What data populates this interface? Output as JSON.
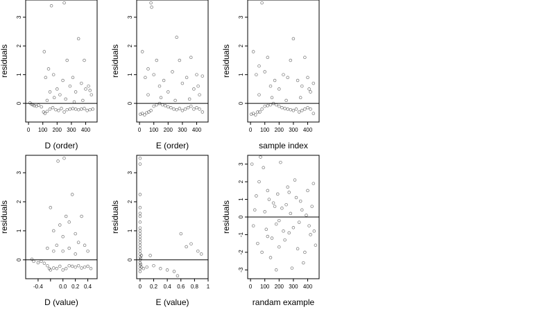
{
  "chart_data": [
    {
      "type": "scatter",
      "xlabel": "D (order)",
      "ylabel": "residuals",
      "xlim": [
        -20,
        480
      ],
      "ylim": [
        -0.65,
        3.6
      ],
      "x_ticks": [
        0,
        100,
        200,
        300,
        400
      ],
      "y_ticks": [
        0,
        1,
        2,
        3
      ],
      "hline": 0,
      "points": [
        [
          10,
          0.02
        ],
        [
          20,
          -0.03
        ],
        [
          30,
          -0.05
        ],
        [
          40,
          -0.08
        ],
        [
          55,
          -0.1
        ],
        [
          70,
          -0.06
        ],
        [
          90,
          -0.12
        ],
        [
          105,
          -0.3
        ],
        [
          115,
          -0.35
        ],
        [
          130,
          -0.28
        ],
        [
          150,
          -0.2
        ],
        [
          170,
          -0.15
        ],
        [
          190,
          -0.22
        ],
        [
          210,
          -0.25
        ],
        [
          230,
          -0.18
        ],
        [
          250,
          -0.3
        ],
        [
          270,
          -0.22
        ],
        [
          290,
          -0.2
        ],
        [
          310,
          -0.18
        ],
        [
          330,
          -0.2
        ],
        [
          350,
          -0.22
        ],
        [
          370,
          -0.2
        ],
        [
          390,
          -0.18
        ],
        [
          410,
          -0.25
        ],
        [
          430,
          -0.22
        ],
        [
          450,
          -0.2
        ],
        [
          110,
          1.8
        ],
        [
          120,
          0.9
        ],
        [
          140,
          1.2
        ],
        [
          150,
          0.4
        ],
        [
          160,
          3.4
        ],
        [
          175,
          1.0
        ],
        [
          200,
          0.5
        ],
        [
          220,
          0.3
        ],
        [
          240,
          0.8
        ],
        [
          250,
          3.5
        ],
        [
          270,
          1.5
        ],
        [
          290,
          0.6
        ],
        [
          310,
          0.9
        ],
        [
          330,
          0.4
        ],
        [
          350,
          2.25
        ],
        [
          370,
          0.7
        ],
        [
          390,
          1.5
        ],
        [
          400,
          0.5
        ],
        [
          420,
          0.6
        ],
        [
          440,
          0.3
        ],
        [
          130,
          0.1
        ],
        [
          180,
          0.2
        ],
        [
          260,
          0.15
        ],
        [
          320,
          0.05
        ],
        [
          380,
          0.1
        ],
        [
          430,
          0.45
        ]
      ]
    },
    {
      "type": "scatter",
      "xlabel": "E (order)",
      "ylabel": "residuals",
      "xlim": [
        -20,
        480
      ],
      "ylim": [
        -0.65,
        3.6
      ],
      "x_ticks": [
        0,
        100,
        200,
        300,
        400
      ],
      "y_ticks": [
        0,
        1,
        2,
        3
      ],
      "hline": 0,
      "points": [
        [
          5,
          -0.38
        ],
        [
          20,
          -0.35
        ],
        [
          35,
          -0.4
        ],
        [
          50,
          -0.33
        ],
        [
          65,
          -0.3
        ],
        [
          80,
          -0.25
        ],
        [
          100,
          -0.1
        ],
        [
          120,
          -0.05
        ],
        [
          140,
          0.0
        ],
        [
          160,
          -0.05
        ],
        [
          180,
          -0.08
        ],
        [
          200,
          -0.12
        ],
        [
          220,
          -0.15
        ],
        [
          240,
          -0.2
        ],
        [
          260,
          -0.22
        ],
        [
          280,
          -0.18
        ],
        [
          300,
          -0.25
        ],
        [
          320,
          -0.2
        ],
        [
          340,
          -0.15
        ],
        [
          360,
          -0.1
        ],
        [
          380,
          -0.2
        ],
        [
          400,
          -0.15
        ],
        [
          420,
          -0.2
        ],
        [
          440,
          -0.3
        ],
        [
          20,
          1.8
        ],
        [
          40,
          0.9
        ],
        [
          60,
          1.2
        ],
        [
          80,
          3.5
        ],
        [
          85,
          3.35
        ],
        [
          100,
          1.0
        ],
        [
          120,
          1.5
        ],
        [
          140,
          0.6
        ],
        [
          170,
          0.8
        ],
        [
          200,
          0.4
        ],
        [
          230,
          1.1
        ],
        [
          260,
          2.3
        ],
        [
          280,
          1.5
        ],
        [
          300,
          0.7
        ],
        [
          330,
          0.9
        ],
        [
          360,
          1.6
        ],
        [
          380,
          0.5
        ],
        [
          400,
          1.0
        ],
        [
          420,
          0.3
        ],
        [
          440,
          0.95
        ],
        [
          60,
          0.3
        ],
        [
          150,
          0.2
        ],
        [
          250,
          0.1
        ],
        [
          350,
          0.15
        ],
        [
          410,
          0.6
        ]
      ]
    },
    {
      "type": "scatter",
      "xlabel": "sample index",
      "ylabel": "residuals",
      "xlim": [
        -20,
        480
      ],
      "ylim": [
        -0.65,
        3.6
      ],
      "x_ticks": [
        0,
        100,
        200,
        300,
        400
      ],
      "y_ticks": [
        0,
        1,
        2,
        3
      ],
      "hline": 0,
      "points": [
        [
          5,
          -0.38
        ],
        [
          20,
          -0.35
        ],
        [
          35,
          -0.4
        ],
        [
          50,
          -0.3
        ],
        [
          65,
          -0.3
        ],
        [
          80,
          -0.2
        ],
        [
          100,
          -0.1
        ],
        [
          120,
          -0.08
        ],
        [
          140,
          -0.05
        ],
        [
          160,
          0.0
        ],
        [
          180,
          -0.05
        ],
        [
          200,
          -0.1
        ],
        [
          220,
          -0.15
        ],
        [
          240,
          -0.18
        ],
        [
          260,
          -0.2
        ],
        [
          280,
          -0.22
        ],
        [
          300,
          -0.25
        ],
        [
          320,
          -0.2
        ],
        [
          340,
          -0.3
        ],
        [
          360,
          -0.25
        ],
        [
          380,
          -0.2
        ],
        [
          400,
          -0.15
        ],
        [
          420,
          -0.2
        ],
        [
          440,
          -0.35
        ],
        [
          20,
          1.8
        ],
        [
          40,
          1.0
        ],
        [
          60,
          1.3
        ],
        [
          80,
          3.5
        ],
        [
          100,
          1.1
        ],
        [
          120,
          1.6
        ],
        [
          140,
          0.6
        ],
        [
          170,
          0.8
        ],
        [
          200,
          0.5
        ],
        [
          230,
          1.0
        ],
        [
          260,
          0.9
        ],
        [
          280,
          1.5
        ],
        [
          300,
          2.25
        ],
        [
          330,
          0.8
        ],
        [
          360,
          0.6
        ],
        [
          380,
          1.6
        ],
        [
          400,
          0.9
        ],
        [
          420,
          0.4
        ],
        [
          440,
          0.7
        ],
        [
          60,
          0.3
        ],
        [
          150,
          0.2
        ],
        [
          250,
          0.1
        ],
        [
          350,
          0.2
        ],
        [
          410,
          0.5
        ]
      ]
    },
    {
      "type": "scatter",
      "xlabel": "D (value)",
      "ylabel": "residuals",
      "xlim": [
        -0.6,
        0.55
      ],
      "ylim": [
        -0.65,
        3.6
      ],
      "x_ticks": [
        -0.4,
        -0.2,
        0.0,
        0.2,
        0.4
      ],
      "x_tick_labels": [
        "-0.4",
        "",
        "0.0",
        "0.2",
        "0.4"
      ],
      "y_ticks": [
        0,
        1,
        2,
        3
      ],
      "hline": 0,
      "points": [
        [
          -0.5,
          0.02
        ],
        [
          -0.47,
          -0.05
        ],
        [
          -0.4,
          -0.1
        ],
        [
          -0.35,
          -0.05
        ],
        [
          -0.3,
          -0.12
        ],
        [
          -0.25,
          -0.2
        ],
        [
          -0.22,
          -0.3
        ],
        [
          -0.2,
          -0.35
        ],
        [
          -0.15,
          -0.28
        ],
        [
          -0.1,
          -0.3
        ],
        [
          -0.05,
          -0.22
        ],
        [
          0.0,
          -0.35
        ],
        [
          0.05,
          -0.3
        ],
        [
          0.1,
          -0.2
        ],
        [
          0.15,
          -0.22
        ],
        [
          0.2,
          -0.25
        ],
        [
          0.25,
          -0.2
        ],
        [
          0.3,
          -0.28
        ],
        [
          0.35,
          -0.25
        ],
        [
          0.4,
          -0.22
        ],
        [
          0.45,
          -0.3
        ],
        [
          -0.2,
          1.8
        ],
        [
          -0.15,
          1.0
        ],
        [
          -0.1,
          0.5
        ],
        [
          -0.08,
          3.4
        ],
        [
          -0.05,
          1.2
        ],
        [
          0.0,
          0.8
        ],
        [
          0.02,
          3.5
        ],
        [
          0.05,
          1.5
        ],
        [
          0.1,
          1.3
        ],
        [
          0.15,
          2.25
        ],
        [
          0.2,
          0.9
        ],
        [
          0.25,
          0.6
        ],
        [
          0.3,
          1.5
        ],
        [
          0.35,
          0.5
        ],
        [
          0.4,
          0.3
        ],
        [
          -0.25,
          0.4
        ],
        [
          -0.15,
          0.3
        ],
        [
          0.0,
          0.3
        ],
        [
          0.1,
          0.4
        ],
        [
          0.2,
          0.2
        ]
      ]
    },
    {
      "type": "scatter",
      "xlabel": "E (value)",
      "ylabel": "residuals",
      "xlim": [
        -0.05,
        1.0
      ],
      "ylim": [
        -0.65,
        3.6
      ],
      "x_ticks": [
        0.0,
        0.2,
        0.4,
        0.6,
        0.8,
        1.0
      ],
      "y_ticks": [
        0,
        1,
        2,
        3
      ],
      "hline": 0,
      "points": [
        [
          0.0,
          3.5
        ],
        [
          0.0,
          3.3
        ],
        [
          0.0,
          2.25
        ],
        [
          0.0,
          1.8
        ],
        [
          0.0,
          1.6
        ],
        [
          0.0,
          1.5
        ],
        [
          0.0,
          1.3
        ],
        [
          0.0,
          1.1
        ],
        [
          0.0,
          1.0
        ],
        [
          0.0,
          0.9
        ],
        [
          0.0,
          0.8
        ],
        [
          0.0,
          0.7
        ],
        [
          0.0,
          0.6
        ],
        [
          0.0,
          0.5
        ],
        [
          0.0,
          0.4
        ],
        [
          0.0,
          0.3
        ],
        [
          0.0,
          0.2
        ],
        [
          0.0,
          0.1
        ],
        [
          0.0,
          0.0
        ],
        [
          0.0,
          -0.1
        ],
        [
          0.0,
          -0.2
        ],
        [
          0.0,
          -0.3
        ],
        [
          0.0,
          -0.4
        ],
        [
          0.01,
          0.05
        ],
        [
          0.01,
          -0.15
        ],
        [
          0.02,
          -0.25
        ],
        [
          0.02,
          0.15
        ],
        [
          0.05,
          -0.3
        ],
        [
          0.1,
          -0.25
        ],
        [
          0.15,
          0.15
        ],
        [
          0.2,
          -0.2
        ],
        [
          0.3,
          -0.3
        ],
        [
          0.4,
          -0.35
        ],
        [
          0.5,
          -0.4
        ],
        [
          0.6,
          0.9
        ],
        [
          0.68,
          0.45
        ],
        [
          0.75,
          0.55
        ],
        [
          0.85,
          0.3
        ],
        [
          0.9,
          0.2
        ],
        [
          0.55,
          -0.55
        ]
      ]
    },
    {
      "type": "scatter",
      "xlabel": "randam example",
      "ylabel": "residuals",
      "xlim": [
        -20,
        480
      ],
      "ylim": [
        -3.5,
        3.5
      ],
      "x_ticks": [
        0,
        100,
        200,
        300,
        400
      ],
      "y_ticks": [
        -3,
        -2,
        -1,
        0,
        1,
        2,
        3
      ],
      "hline": 0,
      "points": [
        [
          10,
          3.0
        ],
        [
          40,
          1.2
        ],
        [
          60,
          2.0
        ],
        [
          70,
          3.4
        ],
        [
          90,
          2.8
        ],
        [
          120,
          1.5
        ],
        [
          150,
          -1.2
        ],
        [
          170,
          0.6
        ],
        [
          210,
          3.1
        ],
        [
          230,
          -0.8
        ],
        [
          260,
          1.7
        ],
        [
          290,
          -2.9
        ],
        [
          310,
          2.1
        ],
        [
          330,
          -1.8
        ],
        [
          350,
          0.9
        ],
        [
          380,
          -2.0
        ],
        [
          400,
          1.5
        ],
        [
          420,
          -1.0
        ],
        [
          440,
          1.9
        ],
        [
          455,
          -1.6
        ],
        [
          20,
          -0.5
        ],
        [
          30,
          0.4
        ],
        [
          50,
          -1.5
        ],
        [
          80,
          -2.0
        ],
        [
          100,
          0.3
        ],
        [
          110,
          -0.7
        ],
        [
          130,
          1.0
        ],
        [
          140,
          -2.3
        ],
        [
          160,
          0.8
        ],
        [
          180,
          -0.4
        ],
        [
          190,
          1.3
        ],
        [
          200,
          -0.2
        ],
        [
          220,
          0.5
        ],
        [
          240,
          -1.3
        ],
        [
          250,
          0.7
        ],
        [
          270,
          -0.9
        ],
        [
          280,
          0.2
        ],
        [
          300,
          -0.6
        ],
        [
          320,
          1.1
        ],
        [
          340,
          -0.3
        ],
        [
          360,
          0.4
        ],
        [
          370,
          -2.6
        ],
        [
          390,
          0.1
        ],
        [
          410,
          -0.5
        ],
        [
          430,
          0.6
        ],
        [
          445,
          -0.8
        ],
        [
          180,
          -3.0
        ],
        [
          200,
          -1.7
        ],
        [
          270,
          1.4
        ],
        [
          120,
          -1.1
        ]
      ]
    }
  ]
}
